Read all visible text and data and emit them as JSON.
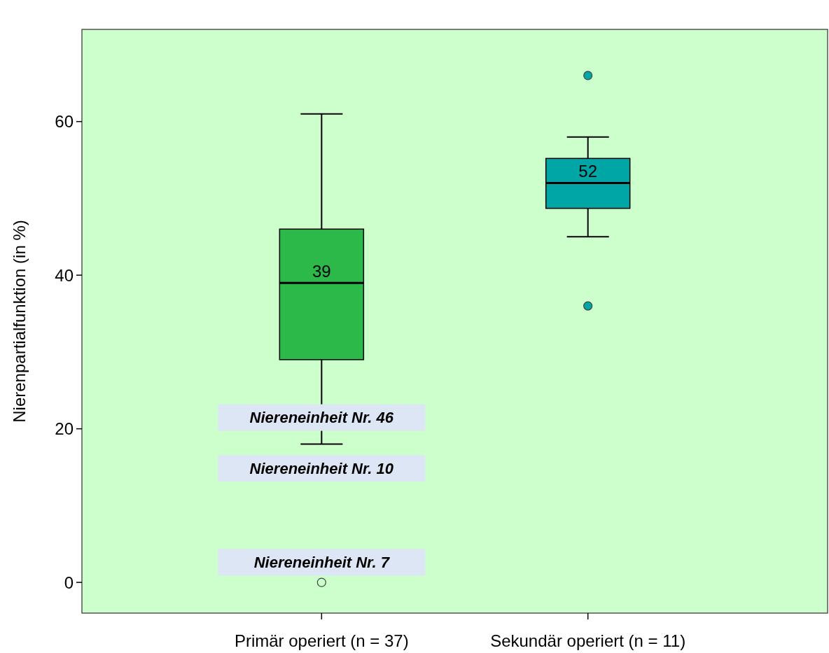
{
  "chart_data": {
    "type": "box",
    "ylabel": "Nierenpartialfunktion (in %)",
    "categories": [
      "Primär operiert (n = 37)",
      "Sekundär operiert (n = 11)"
    ],
    "ylim": [
      -4,
      72
    ],
    "yticks": [
      0,
      20,
      40,
      60
    ],
    "grid": false,
    "value_labels": [
      "39",
      "52"
    ],
    "colors": [
      "#2db84a",
      "#00a5a5"
    ],
    "boxes": [
      {
        "low": 18,
        "q1": 29,
        "median": 39,
        "q3": 46,
        "high": 61,
        "outliers": [
          0
        ]
      },
      {
        "low": 45,
        "q1": 48.7,
        "median": 52,
        "q3": 55.2,
        "high": 58,
        "outliers": [
          66,
          36
        ]
      }
    ],
    "annotations": [
      "Niereneinheit Nr. 46",
      "Niereneinheit Nr. 10",
      "Niereneinheit Nr. 7"
    ]
  }
}
